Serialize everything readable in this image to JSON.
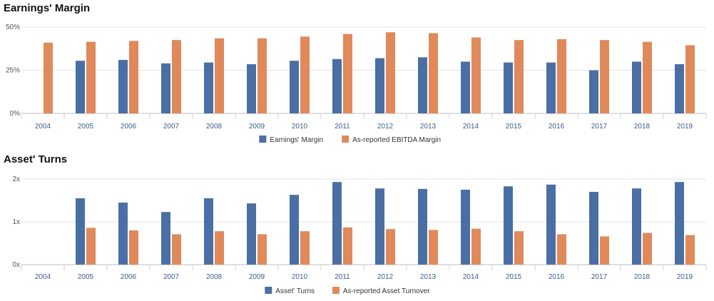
{
  "chart_data": [
    {
      "type": "bar",
      "title": "Earnings' Margin",
      "categories": [
        "2004",
        "2005",
        "2006",
        "2007",
        "2008",
        "2009",
        "2010",
        "2011",
        "2012",
        "2013",
        "2014",
        "2015",
        "2016",
        "2017",
        "2018",
        "2019"
      ],
      "series": [
        {
          "name": "Earnings' Margin",
          "color": "#4a6fa5",
          "values": [
            null,
            30.5,
            31,
            29,
            29.5,
            28.5,
            30.5,
            31.5,
            32,
            32.5,
            30,
            29.5,
            29.5,
            25,
            30,
            28.5
          ]
        },
        {
          "name": "As-reported EBITDA Margin",
          "color": "#e0895a",
          "values": [
            41,
            41.5,
            42,
            42.5,
            43.5,
            43.5,
            44.5,
            46,
            47,
            46.5,
            44,
            42.5,
            43,
            42.5,
            41.5,
            39.5
          ]
        }
      ],
      "ylim": [
        0,
        50
      ],
      "yticks": [
        "0%",
        "25%",
        "50%"
      ],
      "ytick_values": [
        0,
        25,
        50
      ],
      "grid": true,
      "legend": "bottom-center"
    },
    {
      "type": "bar",
      "title": "Asset' Turns",
      "categories": [
        "2004",
        "2005",
        "2006",
        "2007",
        "2008",
        "2009",
        "2010",
        "2011",
        "2012",
        "2013",
        "2014",
        "2015",
        "2016",
        "2017",
        "2018",
        "2019"
      ],
      "series": [
        {
          "name": "Asset' Turns",
          "color": "#4a6fa5",
          "values": [
            null,
            1.55,
            1.45,
            1.23,
            1.55,
            1.43,
            1.63,
            1.93,
            1.78,
            1.77,
            1.75,
            1.83,
            1.87,
            1.7,
            1.78,
            1.93
          ]
        },
        {
          "name": "As-reported Asset Turnover",
          "color": "#e0895a",
          "values": [
            null,
            0.86,
            0.8,
            0.71,
            0.78,
            0.71,
            0.78,
            0.87,
            0.83,
            0.81,
            0.84,
            0.78,
            0.71,
            0.66,
            0.74,
            0.69
          ]
        }
      ],
      "ylim": [
        0,
        2
      ],
      "yticks": [
        "0x",
        "1x",
        "2x"
      ],
      "ytick_values": [
        0,
        1,
        2
      ],
      "grid": true,
      "legend": "bottom-center"
    }
  ]
}
